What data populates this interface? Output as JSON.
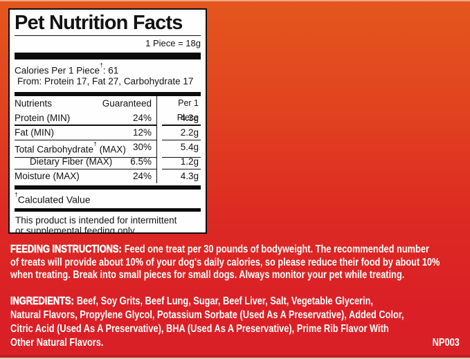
{
  "panel": {
    "title": "Pet Nutrition Facts",
    "serving": "1 Piece = 18g",
    "dagger": "†",
    "calories_pre": "Calories Per 1 Piece",
    "calories_post": ": 61",
    "calories_from": "From: Protein 17, Fat 27, Carbohydrate 17",
    "table": {
      "header": {
        "nutrients": "Nutrients",
        "guaranteed": "Guaranteed",
        "per_piece": "Per 1 Piece"
      },
      "rows": [
        {
          "name": "Protein (MIN)",
          "guaranteed": "24%",
          "per_piece": "4.3g"
        },
        {
          "name": "Fat (MIN)",
          "guaranteed": "12%",
          "per_piece": "2.2g"
        },
        {
          "name_pre": "Total Carbohydrate",
          "name_post": " (MAX)",
          "guaranteed": "30%",
          "per_piece": "5.4g"
        },
        {
          "name": "Dietary Fiber (MAX)",
          "guaranteed": "6.5%",
          "per_piece": "1.2g"
        },
        {
          "name": "Moisture (MAX)",
          "guaranteed": "24%",
          "per_piece": "4.3g"
        }
      ]
    },
    "footnote_text": "Calculated Value",
    "statement_line1": "This product is intended for intermittent",
    "statement_line2": "or supplemental feeding only."
  },
  "feeding": {
    "label": "FEEDING INSTRUCTIONS:",
    "line1_rest": "Feed one treat per 30 pounds of bodyweight. The recommended number",
    "line2": "of treats will provide about 10% of your dog's daily calories, so please reduce their food by about 10%",
    "line3": "when treating. Break into small pieces for small dogs. Always monitor your pet while treating."
  },
  "ingredients": {
    "label": "INGREDIENTS:",
    "line1_rest": "Beef, Soy Grits, Beef Lung, Sugar, Beef Liver, Salt, Vegetable Glycerin,",
    "line2": "Natural Flavors, Propylene Glycol, Potassium Sorbate (Used As A Preservative), Added Color,",
    "line3": "Citric Acid (Used As A Preservative), BHA (Used As A Preservative), Prime Rib Flavor With",
    "line4": "Other Natural Flavors.",
    "code": "NP003"
  },
  "colors": {
    "background_top": "#E4571E",
    "background_bottom": "#D92026",
    "panel_background": "#FEFEFE",
    "panel_text": "#121212",
    "section_text": "#FFFFFF"
  }
}
